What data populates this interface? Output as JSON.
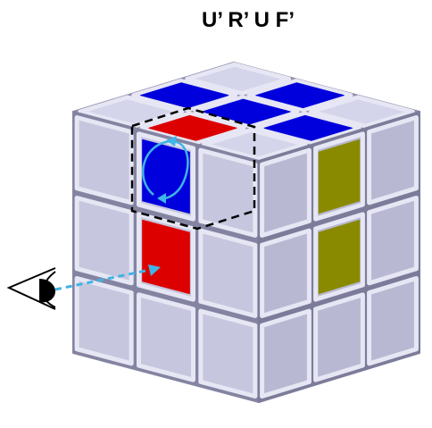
{
  "title": "U’ R’ U F’"
}
